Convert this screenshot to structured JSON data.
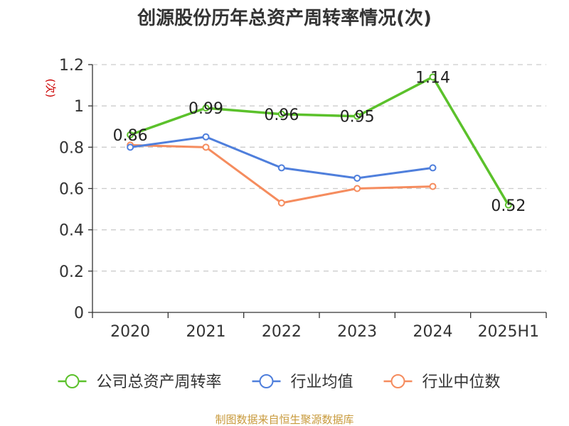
{
  "title": "创源股份历年总资产周转率情况(次)",
  "source": "制图数据来自恒生聚源数据库",
  "chart_data": {
    "type": "line",
    "title": "创源股份历年总资产周转率情况(次)",
    "ylabel": "(次)",
    "xlabel": "",
    "ylim": [
      0,
      1.2
    ],
    "yticks": [
      "0",
      "0.2",
      "0.4",
      "0.6",
      "0.8",
      "1",
      "1.2"
    ],
    "categories": [
      "2020",
      "2021",
      "2022",
      "2023",
      "2024",
      "2025H1"
    ],
    "grid": true,
    "legend_position": "bottom",
    "series": [
      {
        "name": "公司总资产周转率",
        "color": "#5bc12b",
        "values": [
          0.86,
          0.99,
          0.96,
          0.95,
          1.14,
          0.52
        ],
        "labels": [
          "0.86",
          "0.99",
          "0.96",
          "0.95",
          "1.14",
          "0.52"
        ]
      },
      {
        "name": "行业均值",
        "color": "#4f7fdc",
        "values": [
          0.8,
          0.85,
          0.7,
          0.65,
          0.7,
          null
        ]
      },
      {
        "name": "行业中位数",
        "color": "#f58c5e",
        "values": [
          0.81,
          0.8,
          0.53,
          0.6,
          0.61,
          null
        ]
      }
    ]
  }
}
